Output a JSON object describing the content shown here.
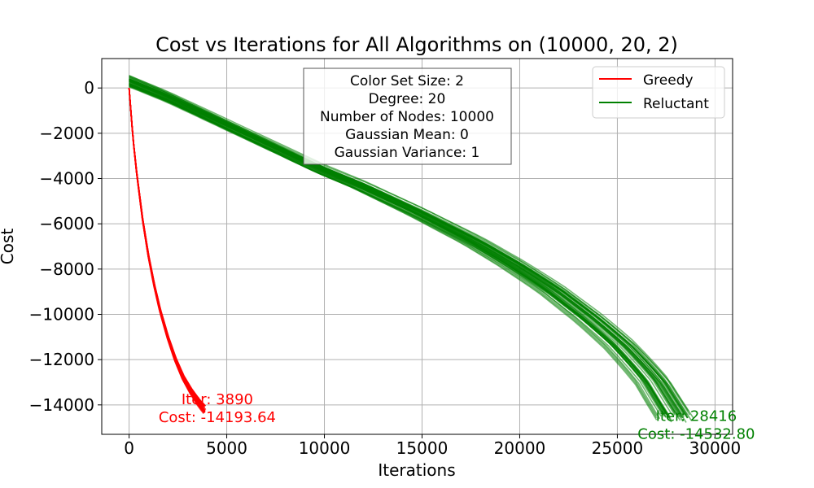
{
  "chart_data": {
    "type": "line",
    "title": "Cost vs Iterations for All Algorithms on (10000, 20, 2)",
    "xlabel": "Iterations",
    "ylabel": "Cost",
    "xlim": [
      -1400,
      30900
    ],
    "ylim": [
      -15300,
      1300
    ],
    "xticks": [
      0,
      5000,
      10000,
      15000,
      20000,
      25000,
      30000
    ],
    "yticks": [
      0,
      -2000,
      -4000,
      -6000,
      -8000,
      -10000,
      -12000,
      -14000
    ],
    "grid": true,
    "legend": {
      "placement": "top-right",
      "entries": [
        "Greedy",
        "Reluctant"
      ]
    },
    "info_box": [
      "Color Set Size: 2",
      "Degree: 20",
      "Number of Nodes: 10000",
      "Gaussian Mean: 0",
      "Gaussian Variance: 1"
    ],
    "series": [
      {
        "name": "Greedy",
        "color": "#ff0000",
        "x": [
          0,
          200,
          400,
          700,
          1000,
          1300,
          1600,
          2000,
          2400,
          2800,
          3200,
          3600,
          3890
        ],
        "y": [
          0,
          -2200,
          -3800,
          -5800,
          -7400,
          -8700,
          -9800,
          -11000,
          -12000,
          -12800,
          -13400,
          -13900,
          -14193.64
        ],
        "final": {
          "iter_label": "Iter: 3890",
          "cost_label": "Cost: -14193.64"
        }
      },
      {
        "name": "Reluctant",
        "color": "#008000",
        "x": [
          0,
          2000,
          5000,
          8000,
          10000,
          12000,
          15000,
          18000,
          20000,
          22000,
          24000,
          25500,
          26500,
          27300,
          27800,
          28416
        ],
        "y": [
          300,
          -400,
          -1600,
          -2800,
          -3600,
          -4300,
          -5500,
          -6800,
          -7800,
          -8900,
          -10200,
          -11300,
          -12200,
          -13000,
          -13700,
          -14532.8
        ],
        "final": {
          "iter_label": "Iter: 28416",
          "cost_label": "Cost: -14532.80"
        }
      }
    ]
  }
}
